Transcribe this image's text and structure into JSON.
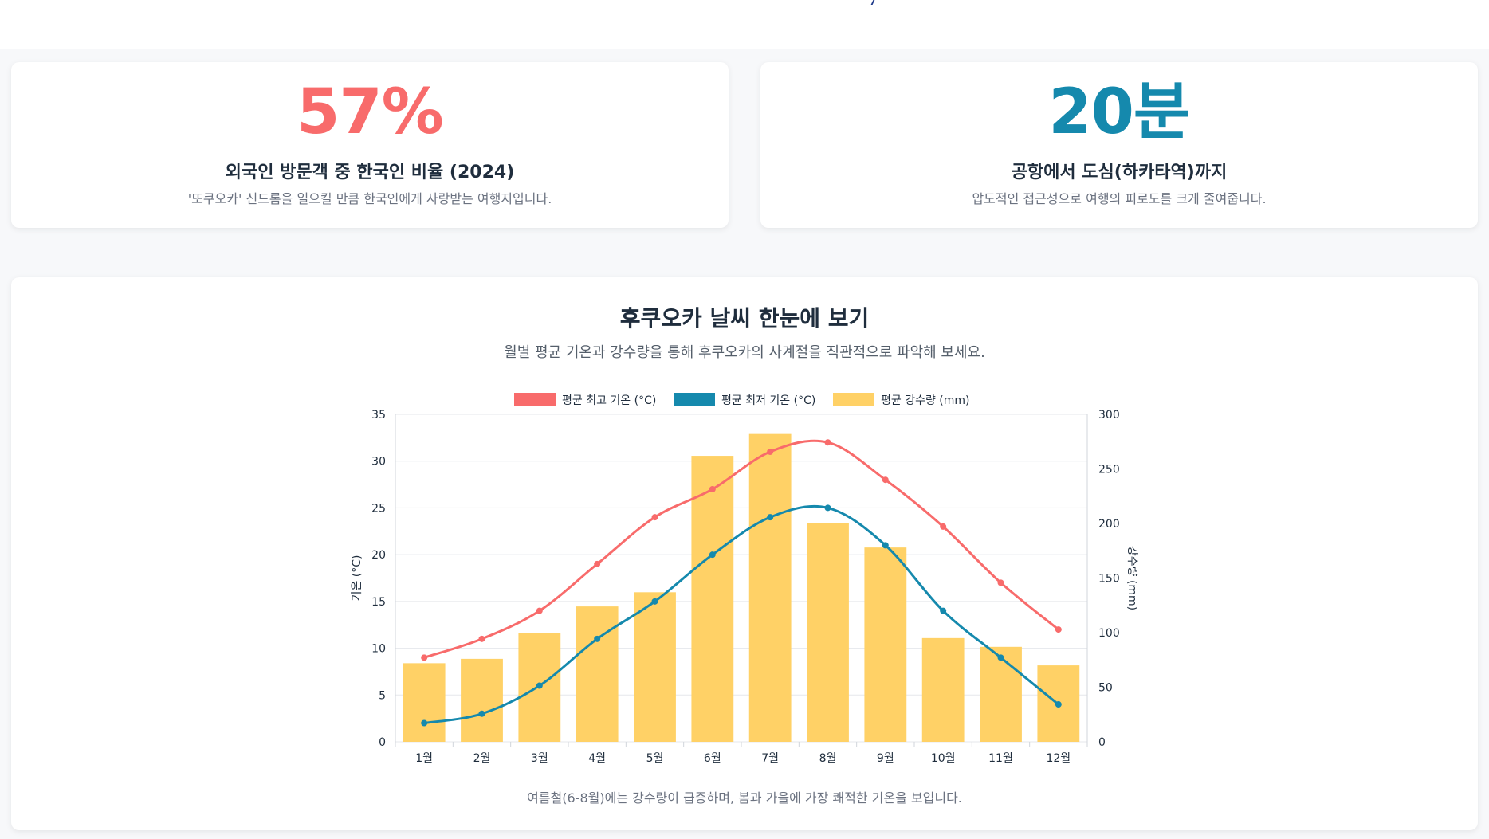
{
  "stats": [
    {
      "value": "57%",
      "color": "#f86b6b",
      "title": "외국인 방문객 중 한국인 비율 (2024)",
      "description": "'또쿠오카' 신드롬을 일으킬 만큼 한국인에게 사랑받는 여행지입니다."
    },
    {
      "value": "20분",
      "color": "#1589ad",
      "title": "공항에서 도심(하카타역)까지",
      "description": "압도적인 접근성으로 여행의 피로도를 크게 줄여줍니다."
    }
  ],
  "chart_section": {
    "title": "후쿠오카 날씨 한눈에 보기",
    "subtitle": "월별 평균 기온과 강수량을 통해 후쿠오카의 사계절을 직관적으로 파악해 보세요.",
    "note": "여름철(6-8월)에는 강수량이 급증하며, 봄과 가을에 가장 쾌적한 기온을 보입니다."
  },
  "chart_data": {
    "type": "bar",
    "categories": [
      "1월",
      "2월",
      "3월",
      "4월",
      "5월",
      "6월",
      "7월",
      "8월",
      "9월",
      "10월",
      "11월",
      "12월"
    ],
    "series": [
      {
        "name": "평균 최고 기온 (°C)",
        "type": "line",
        "axis": "left",
        "color": "#f86b6b",
        "values": [
          9,
          11,
          14,
          19,
          24,
          27,
          31,
          32,
          28,
          23,
          17,
          12
        ]
      },
      {
        "name": "평균 최저 기온 (°C)",
        "type": "line",
        "axis": "left",
        "color": "#1589ad",
        "values": [
          2,
          3,
          6,
          11,
          15,
          20,
          24,
          25,
          21,
          14,
          9,
          4
        ]
      },
      {
        "name": "평균 강수량 (mm)",
        "type": "bar",
        "axis": "right",
        "color": "#ffd166",
        "values": [
          72,
          76,
          100,
          124,
          137,
          262,
          282,
          200,
          178,
          95,
          87,
          70
        ]
      }
    ],
    "ylabel": "기온 (°C)",
    "y2label": "강수량 (mm)",
    "ylim": [
      0,
      35
    ],
    "y2lim": [
      0,
      300
    ],
    "yticks": [
      0,
      5,
      10,
      15,
      20,
      25,
      30,
      35
    ],
    "y2ticks": [
      0,
      50,
      100,
      150,
      200,
      250,
      300
    ],
    "legend_position": "top",
    "grid": true
  }
}
